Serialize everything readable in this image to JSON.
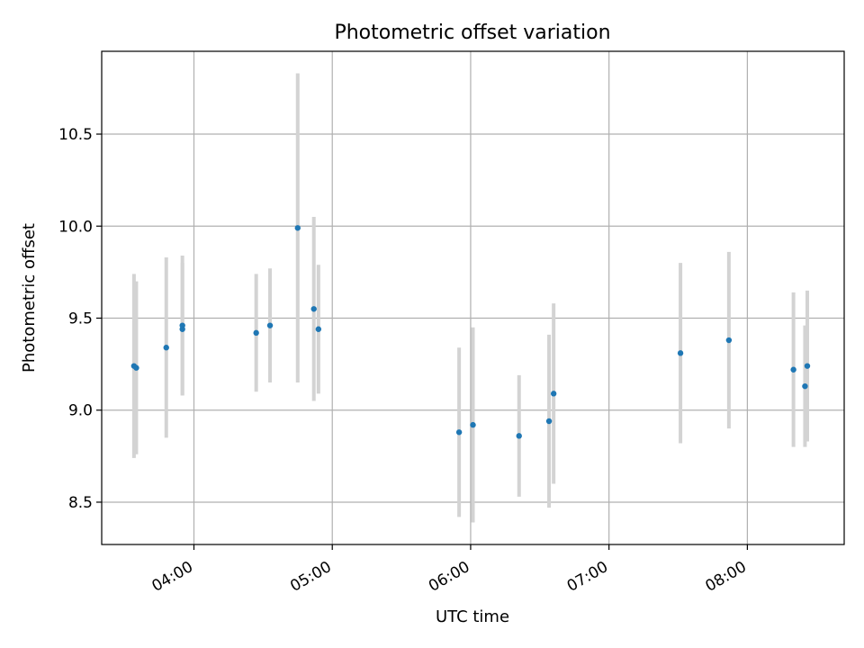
{
  "chart_data": {
    "type": "scatter",
    "title": "Photometric offset variation",
    "xlabel": "UTC time",
    "ylabel": "Photometric offset",
    "x_ticks": [
      "04:00",
      "05:00",
      "06:00",
      "07:00",
      "08:00"
    ],
    "y_ticks": [
      "8.5",
      "9.0",
      "9.5",
      "10.0",
      "10.5"
    ],
    "xlim": [
      "03:20",
      "08:42"
    ],
    "ylim": [
      8.27,
      10.95
    ],
    "grid": true,
    "colors": {
      "point": "#1f77b4",
      "errorbar": "#d3d3d3",
      "grid": "#b0b0b0"
    },
    "points": [
      {
        "x": "03:34",
        "y": 9.24,
        "err": 0.5
      },
      {
        "x": "03:35",
        "y": 9.23,
        "err": 0.47
      },
      {
        "x": "03:48",
        "y": 9.34,
        "err": 0.49
      },
      {
        "x": "03:55",
        "y": 9.46,
        "err": 0.38
      },
      {
        "x": "03:55",
        "y": 9.44,
        "err": 0.36
      },
      {
        "x": "04:27",
        "y": 9.42,
        "err": 0.32
      },
      {
        "x": "04:33",
        "y": 9.46,
        "err": 0.31
      },
      {
        "x": "04:45",
        "y": 9.99,
        "err": 0.84
      },
      {
        "x": "04:52",
        "y": 9.55,
        "err": 0.5
      },
      {
        "x": "04:54",
        "y": 9.44,
        "err": 0.35
      },
      {
        "x": "05:55",
        "y": 8.88,
        "err": 0.46
      },
      {
        "x": "06:01",
        "y": 8.92,
        "err": 0.53
      },
      {
        "x": "06:21",
        "y": 8.86,
        "err": 0.33
      },
      {
        "x": "06:34",
        "y": 8.94,
        "err": 0.47
      },
      {
        "x": "06:36",
        "y": 9.09,
        "err": 0.49
      },
      {
        "x": "07:31",
        "y": 9.31,
        "err": 0.49
      },
      {
        "x": "07:52",
        "y": 9.38,
        "err": 0.48
      },
      {
        "x": "08:20",
        "y": 9.22,
        "err": 0.42
      },
      {
        "x": "08:25",
        "y": 9.13,
        "err": 0.33
      },
      {
        "x": "08:26",
        "y": 9.24,
        "err": 0.41
      }
    ]
  }
}
